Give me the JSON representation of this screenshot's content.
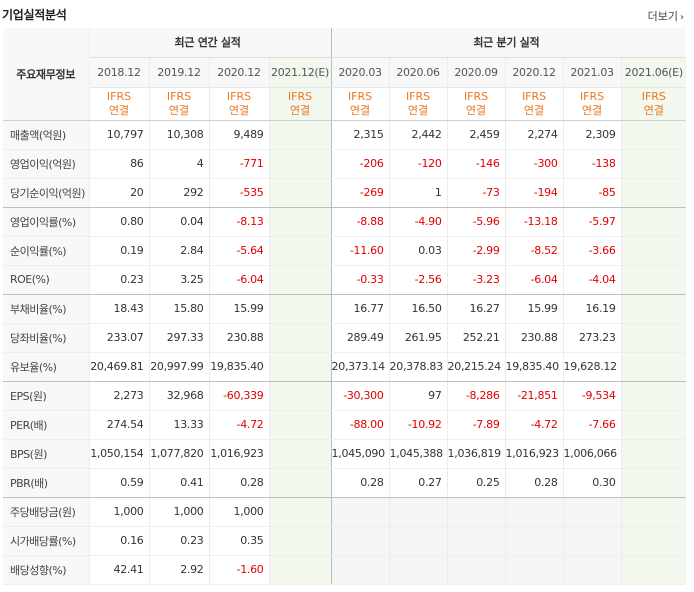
{
  "header": {
    "title": "기업실적분석",
    "more_label": "더보기"
  },
  "table": {
    "row_header_label": "주요재무정보",
    "annual_label": "최근 연간 실적",
    "quarter_label": "최근 분기 실적",
    "periods": [
      "2018.12",
      "2019.12",
      "2020.12",
      "2021.12(E)",
      "2020.03",
      "2020.06",
      "2020.09",
      "2020.12",
      "2021.03",
      "2021.06(E)"
    ],
    "ifrs_line1": "IFRS",
    "ifrs_line2": "연결",
    "rows": [
      {
        "label": "매출액(억원)",
        "values": [
          "10,797",
          "10,308",
          "9,489",
          "",
          "2,315",
          "2,442",
          "2,459",
          "2,274",
          "2,309",
          ""
        ]
      },
      {
        "label": "영업이익(억원)",
        "values": [
          "86",
          "4",
          "-771",
          "",
          "-206",
          "-120",
          "-146",
          "-300",
          "-138",
          ""
        ]
      },
      {
        "label": "당기순이익(억원)",
        "values": [
          "20",
          "292",
          "-535",
          "",
          "-269",
          "1",
          "-73",
          "-194",
          "-85",
          ""
        ]
      },
      {
        "label": "영업이익률(%)",
        "values": [
          "0.80",
          "0.04",
          "-8.13",
          "",
          "-8.88",
          "-4.90",
          "-5.96",
          "-13.18",
          "-5.97",
          ""
        ]
      },
      {
        "label": "순이익률(%)",
        "values": [
          "0.19",
          "2.84",
          "-5.64",
          "",
          "-11.60",
          "0.03",
          "-2.99",
          "-8.52",
          "-3.66",
          ""
        ]
      },
      {
        "label": "ROE(%)",
        "values": [
          "0.23",
          "3.25",
          "-6.04",
          "",
          "-0.33",
          "-2.56",
          "-3.23",
          "-6.04",
          "-4.04",
          ""
        ]
      },
      {
        "label": "부채비율(%)",
        "values": [
          "18.43",
          "15.80",
          "15.99",
          "",
          "16.77",
          "16.50",
          "16.27",
          "15.99",
          "16.19",
          ""
        ]
      },
      {
        "label": "당좌비율(%)",
        "values": [
          "233.07",
          "297.33",
          "230.88",
          "",
          "289.49",
          "261.95",
          "252.21",
          "230.88",
          "273.23",
          ""
        ]
      },
      {
        "label": "유보율(%)",
        "values": [
          "20,469.81",
          "20,997.99",
          "19,835.40",
          "",
          "20,373.14",
          "20,378.83",
          "20,215.24",
          "19,835.40",
          "19,628.12",
          ""
        ]
      },
      {
        "label": "EPS(원)",
        "values": [
          "2,273",
          "32,968",
          "-60,339",
          "",
          "-30,300",
          "97",
          "-8,286",
          "-21,851",
          "-9,534",
          ""
        ]
      },
      {
        "label": "PER(배)",
        "values": [
          "274.54",
          "13.33",
          "-4.72",
          "",
          "-88.00",
          "-10.92",
          "-7.89",
          "-4.72",
          "-7.66",
          ""
        ]
      },
      {
        "label": "BPS(원)",
        "values": [
          "1,050,154",
          "1,077,820",
          "1,016,923",
          "",
          "1,045,090",
          "1,045,388",
          "1,036,819",
          "1,016,923",
          "1,006,066",
          ""
        ]
      },
      {
        "label": "PBR(배)",
        "values": [
          "0.59",
          "0.41",
          "0.28",
          "",
          "0.28",
          "0.27",
          "0.25",
          "0.28",
          "0.30",
          ""
        ]
      },
      {
        "label": "주당배당금(원)",
        "values": [
          "1,000",
          "1,000",
          "1,000",
          "",
          "",
          "",
          "",
          "",
          "",
          ""
        ]
      },
      {
        "label": "시가배당률(%)",
        "values": [
          "0.16",
          "0.23",
          "0.35",
          "",
          "",
          "",
          "",
          "",
          "",
          ""
        ]
      },
      {
        "label": "배당성향(%)",
        "values": [
          "42.41",
          "2.92",
          "-1.60",
          "",
          "",
          "",
          "",
          "",
          "",
          ""
        ]
      }
    ]
  },
  "colors": {
    "negative": "#e10000",
    "ifrs": "#e87722",
    "estimate_bg": "#f2f8ee",
    "header_bg": "#f8f8f8"
  }
}
